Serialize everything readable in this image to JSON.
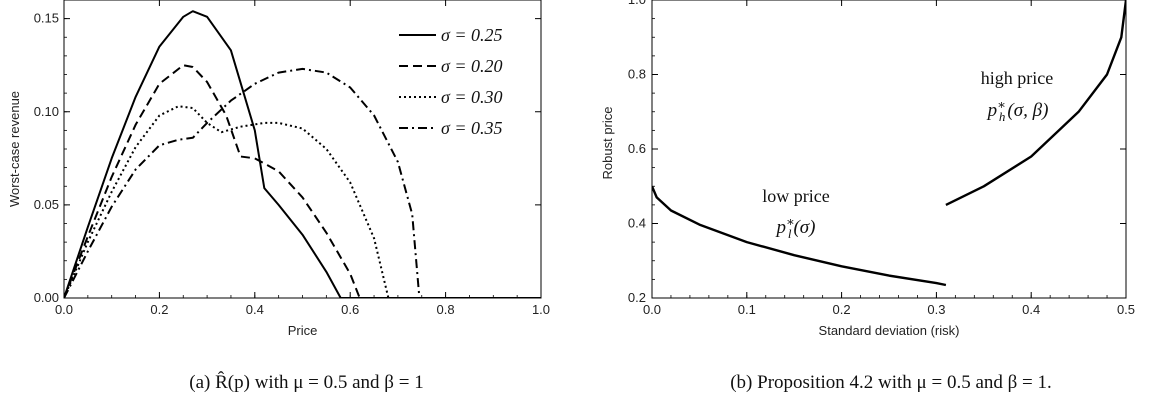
{
  "chart_data": [
    {
      "type": "line",
      "caption": "(a) R̂(p) with μ = 0.5 and β = 1",
      "xlabel": "Price",
      "ylabel": "Worst-case revenue",
      "xlim": [
        0,
        1
      ],
      "ylim": [
        0,
        0.16
      ],
      "xticks": [
        "0.0",
        "0.2",
        "0.4",
        "0.6",
        "0.8",
        "1.0"
      ],
      "yticks": [
        "0.00",
        "0.05",
        "0.10",
        "0.15"
      ],
      "legend_position": "top-right",
      "series": [
        {
          "name": "σ = 0.25",
          "dash": "solid",
          "points": [
            [
              0,
              0
            ],
            [
              0.05,
              0.038
            ],
            [
              0.1,
              0.075
            ],
            [
              0.15,
              0.108
            ],
            [
              0.2,
              0.135
            ],
            [
              0.25,
              0.151
            ],
            [
              0.27,
              0.154
            ],
            [
              0.3,
              0.151
            ],
            [
              0.35,
              0.133
            ],
            [
              0.4,
              0.09
            ],
            [
              0.42,
              0.059
            ],
            [
              0.45,
              0.05
            ],
            [
              0.5,
              0.034
            ],
            [
              0.55,
              0.014
            ],
            [
              0.58,
              0.0
            ],
            [
              1.0,
              0.0
            ]
          ]
        },
        {
          "name": "σ = 0.20",
          "dash": "dashed",
          "points": [
            [
              0,
              0
            ],
            [
              0.05,
              0.033
            ],
            [
              0.1,
              0.065
            ],
            [
              0.15,
              0.093
            ],
            [
              0.2,
              0.115
            ],
            [
              0.25,
              0.125
            ],
            [
              0.27,
              0.124
            ],
            [
              0.3,
              0.116
            ],
            [
              0.34,
              0.098
            ],
            [
              0.37,
              0.076
            ],
            [
              0.4,
              0.075
            ],
            [
              0.45,
              0.068
            ],
            [
              0.5,
              0.054
            ],
            [
              0.55,
              0.035
            ],
            [
              0.6,
              0.013
            ],
            [
              0.62,
              0.0
            ],
            [
              1.0,
              0.0
            ]
          ]
        },
        {
          "name": "σ = 0.30",
          "dash": "dotted",
          "points": [
            [
              0,
              0
            ],
            [
              0.05,
              0.03
            ],
            [
              0.1,
              0.057
            ],
            [
              0.15,
              0.081
            ],
            [
              0.2,
              0.098
            ],
            [
              0.24,
              0.103
            ],
            [
              0.27,
              0.102
            ],
            [
              0.3,
              0.094
            ],
            [
              0.33,
              0.089
            ],
            [
              0.37,
              0.092
            ],
            [
              0.42,
              0.094
            ],
            [
              0.45,
              0.094
            ],
            [
              0.5,
              0.091
            ],
            [
              0.55,
              0.08
            ],
            [
              0.6,
              0.062
            ],
            [
              0.65,
              0.032
            ],
            [
              0.68,
              0.0
            ],
            [
              1.0,
              0.0
            ]
          ]
        },
        {
          "name": "σ = 0.35",
          "dash": "dashdot",
          "points": [
            [
              0,
              0
            ],
            [
              0.05,
              0.025
            ],
            [
              0.1,
              0.049
            ],
            [
              0.15,
              0.069
            ],
            [
              0.2,
              0.082
            ],
            [
              0.24,
              0.085
            ],
            [
              0.27,
              0.086
            ],
            [
              0.3,
              0.094
            ],
            [
              0.35,
              0.106
            ],
            [
              0.4,
              0.115
            ],
            [
              0.45,
              0.121
            ],
            [
              0.5,
              0.123
            ],
            [
              0.55,
              0.121
            ],
            [
              0.6,
              0.113
            ],
            [
              0.65,
              0.098
            ],
            [
              0.7,
              0.073
            ],
            [
              0.73,
              0.045
            ],
            [
              0.745,
              0.0
            ],
            [
              1.0,
              0.0
            ]
          ]
        }
      ]
    },
    {
      "type": "line",
      "caption": "(b) Proposition 4.2 with μ = 0.5 and β = 1.",
      "xlabel": "Standard deviation (risk)",
      "ylabel": "Robust price",
      "xlim": [
        0,
        0.5
      ],
      "ylim": [
        0.2,
        1.0
      ],
      "xticks": [
        "0.0",
        "0.1",
        "0.2",
        "0.3",
        "0.4",
        "0.5"
      ],
      "yticks": [
        "0.2",
        "0.4",
        "0.6",
        "0.8",
        "1.0"
      ],
      "annotations": [
        {
          "text": "low price",
          "math": "p*l(σ)"
        },
        {
          "text": "high price",
          "math": "p*h(σ, β)"
        }
      ],
      "series": [
        {
          "segment": "low",
          "points": [
            [
              0,
              0.5
            ],
            [
              0.005,
              0.47
            ],
            [
              0.02,
              0.435
            ],
            [
              0.05,
              0.397
            ],
            [
              0.1,
              0.35
            ],
            [
              0.15,
              0.315
            ],
            [
              0.2,
              0.285
            ],
            [
              0.25,
              0.26
            ],
            [
              0.3,
              0.24
            ],
            [
              0.31,
              0.235
            ]
          ]
        },
        {
          "segment": "high",
          "points": [
            [
              0.31,
              0.45
            ],
            [
              0.35,
              0.5
            ],
            [
              0.4,
              0.58
            ],
            [
              0.45,
              0.7
            ],
            [
              0.48,
              0.8
            ],
            [
              0.495,
              0.9
            ],
            [
              0.5,
              1.0
            ]
          ]
        }
      ]
    }
  ]
}
